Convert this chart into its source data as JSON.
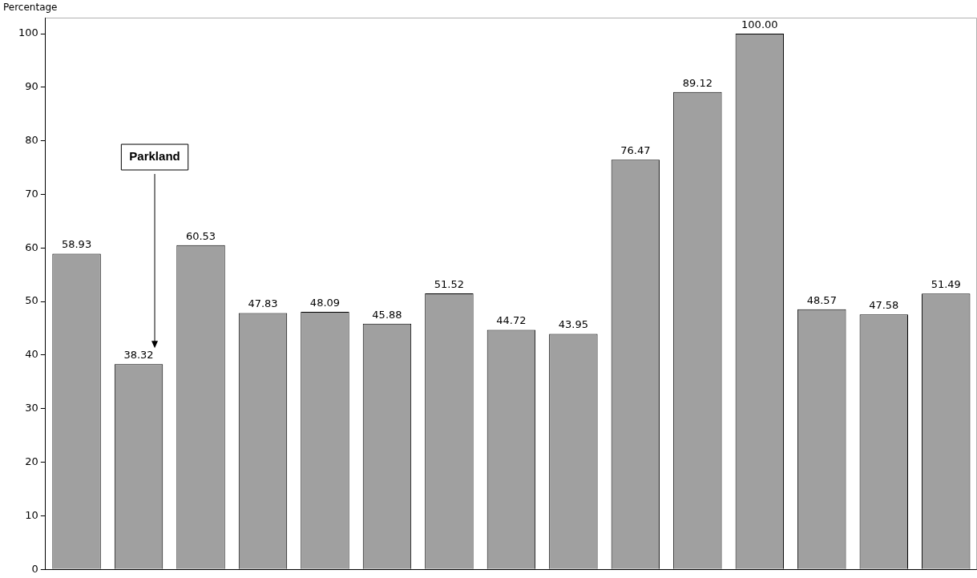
{
  "chart_data": {
    "type": "bar",
    "ylabel": "Percentage",
    "categories": [
      null,
      null,
      null,
      null,
      null,
      null,
      null,
      null,
      null,
      null,
      null,
      null,
      null,
      null,
      null
    ],
    "values": [
      58.93,
      38.32,
      60.53,
      47.83,
      48.09,
      45.88,
      51.52,
      44.72,
      43.95,
      76.47,
      89.12,
      100.0,
      48.57,
      47.58,
      51.49
    ],
    "value_labels": [
      "58.93",
      "38.32",
      "60.53",
      "47.83",
      "48.09",
      "45.88",
      "51.52",
      "44.72",
      "43.95",
      "76.47",
      "89.12",
      "100.00",
      "48.57",
      "47.58",
      "51.49"
    ],
    "color": "#a0a0a0",
    "ylim": [
      0,
      103
    ],
    "yticks": [
      0,
      10,
      20,
      30,
      40,
      50,
      60,
      70,
      80,
      90,
      100
    ],
    "grid": false,
    "annotations": [
      "Parkland"
    ]
  }
}
